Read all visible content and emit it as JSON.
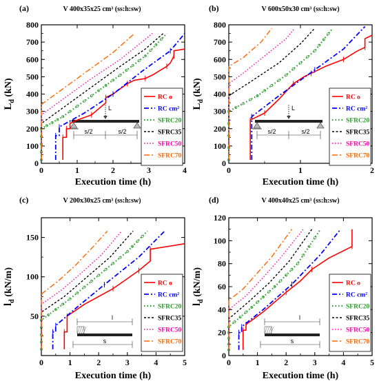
{
  "colors": {
    "RC o": "#ff0000",
    "RC cm²": "#0000ff",
    "SFRC20": "#2a9d2a",
    "SFRC35": "#000000",
    "SFRC50": "#ff00aa",
    "SFRC70": "#ff6600"
  },
  "chart_data": [
    {
      "id": "a",
      "type": "line",
      "panel_label": "(a)",
      "title": "V 400x35x25 cm³ (ss:h:sw)",
      "xlabel": "Execution time (h)",
      "ylabel_main": "L",
      "ylabel_sub": "d",
      "ylabel_unit": " (kN)",
      "xlim": [
        0,
        4
      ],
      "ylim": [
        0,
        800
      ],
      "xticks": [
        0,
        1,
        2,
        3,
        4
      ],
      "yticks": [
        0,
        100,
        200,
        300,
        400,
        500,
        600,
        700,
        800
      ],
      "inset": {
        "type": "beam",
        "labels": [
          "L",
          "s/2",
          "s/2"
        ]
      },
      "series": [
        {
          "name": "RC o",
          "points": [
            [
              0.6,
              20
            ],
            [
              0.6,
              150
            ],
            [
              0.7,
              150
            ],
            [
              0.7,
              200
            ],
            [
              0.8,
              200
            ],
            [
              0.8,
              230
            ],
            [
              1.0,
              250
            ],
            [
              1.4,
              280
            ],
            [
              1.8,
              350
            ],
            [
              1.8,
              380
            ],
            [
              2.0,
              400
            ],
            [
              2.4,
              460
            ],
            [
              2.6,
              480
            ],
            [
              2.9,
              490
            ],
            [
              3.1,
              510
            ],
            [
              3.5,
              560
            ],
            [
              3.6,
              580
            ],
            [
              3.7,
              620
            ],
            [
              3.7,
              650
            ],
            [
              4.0,
              660
            ]
          ]
        },
        {
          "name": "RC cm²",
          "points": [
            [
              0.4,
              20
            ],
            [
              0.4,
              160
            ],
            [
              0.5,
              160
            ],
            [
              0.5,
              210
            ],
            [
              1.2,
              290
            ],
            [
              2.0,
              400
            ],
            [
              2.8,
              530
            ],
            [
              3.6,
              650
            ],
            [
              4.0,
              750
            ]
          ]
        },
        {
          "name": "SFRC20",
          "points": [
            [
              0,
              20
            ],
            [
              0,
              200
            ],
            [
              0.6,
              270
            ],
            [
              1.4,
              390
            ],
            [
              2.2,
              510
            ],
            [
              2.9,
              620
            ],
            [
              3.5,
              750
            ]
          ]
        },
        {
          "name": "SFRC35",
          "points": [
            [
              0,
              20
            ],
            [
              0,
              230
            ],
            [
              0.6,
              320
            ],
            [
              1.4,
              440
            ],
            [
              2.2,
              560
            ],
            [
              2.9,
              660
            ],
            [
              3.4,
              750
            ]
          ]
        },
        {
          "name": "SFRC50",
          "points": [
            [
              0,
              20
            ],
            [
              0,
              280
            ],
            [
              0.6,
              370
            ],
            [
              1.4,
              490
            ],
            [
              2.2,
              600
            ],
            [
              3.1,
              750
            ]
          ]
        },
        {
          "name": "SFRC70",
          "points": [
            [
              0,
              20
            ],
            [
              0,
              340
            ],
            [
              0.6,
              430
            ],
            [
              1.4,
              550
            ],
            [
              2.0,
              640
            ],
            [
              2.6,
              750
            ]
          ]
        }
      ]
    },
    {
      "id": "b",
      "type": "line",
      "panel_label": "(b)",
      "title": "V 600x50x30 cm³ (ss:h:sw)",
      "xlabel": "Execution time (h)",
      "ylabel_main": "L",
      "ylabel_sub": "d",
      "ylabel_unit": " (kN)",
      "xlim": [
        0,
        2
      ],
      "ylim": [
        0,
        800
      ],
      "xticks": [
        0,
        1,
        2
      ],
      "yticks": [
        0,
        100,
        200,
        300,
        400,
        500,
        600,
        700,
        800
      ],
      "inset": {
        "type": "beam",
        "labels": [
          "L",
          "s/2",
          "s/2"
        ]
      },
      "series": [
        {
          "name": "RC o",
          "points": [
            [
              0.3,
              20
            ],
            [
              0.3,
              250
            ],
            [
              0.35,
              260
            ],
            [
              0.5,
              290
            ],
            [
              0.7,
              370
            ],
            [
              0.9,
              460
            ],
            [
              1.05,
              500
            ],
            [
              1.15,
              520
            ],
            [
              1.35,
              560
            ],
            [
              1.6,
              600
            ],
            [
              1.8,
              650
            ],
            [
              1.9,
              670
            ],
            [
              1.9,
              720
            ],
            [
              2.0,
              740
            ]
          ]
        },
        {
          "name": "RC cm²",
          "points": [
            [
              0.32,
              20
            ],
            [
              0.32,
              270
            ],
            [
              0.7,
              390
            ],
            [
              1.2,
              540
            ],
            [
              1.6,
              660
            ],
            [
              1.9,
              790
            ]
          ]
        },
        {
          "name": "SFRC20",
          "points": [
            [
              0,
              20
            ],
            [
              0,
              300
            ],
            [
              0.4,
              390
            ],
            [
              0.8,
              510
            ],
            [
              1.2,
              650
            ],
            [
              1.45,
              780
            ]
          ]
        },
        {
          "name": "SFRC35",
          "points": [
            [
              0,
              20
            ],
            [
              0,
              390
            ],
            [
              0.3,
              470
            ],
            [
              0.7,
              580
            ],
            [
              1.0,
              690
            ],
            [
              1.2,
              780
            ]
          ]
        },
        {
          "name": "SFRC50",
          "points": [
            [
              0,
              20
            ],
            [
              0,
              460
            ],
            [
              0.2,
              520
            ],
            [
              0.5,
              620
            ],
            [
              0.8,
              720
            ],
            [
              0.92,
              780
            ]
          ]
        },
        {
          "name": "SFRC70",
          "points": [
            [
              0,
              20
            ],
            [
              0,
              560
            ],
            [
              0.2,
              610
            ],
            [
              0.45,
              700
            ],
            [
              0.6,
              780
            ]
          ]
        }
      ]
    },
    {
      "id": "c",
      "type": "line",
      "panel_label": "(c)",
      "title": "V 200x30x25 cm³ (ss:h:sw)",
      "xlabel": "Execution time (h)",
      "ylabel_main": "l",
      "ylabel_sub": "d",
      "ylabel_unit": " (kN/m)",
      "xlim": [
        0,
        5
      ],
      "ylim": [
        0,
        175
      ],
      "xticks": [
        0,
        1,
        2,
        3,
        4,
        5
      ],
      "yticks": [
        50,
        100,
        150
      ],
      "inset": {
        "type": "slab",
        "labels": [
          "l",
          "s"
        ]
      },
      "series": [
        {
          "name": "RC o",
          "points": [
            [
              0.8,
              8
            ],
            [
              0.8,
              30
            ],
            [
              0.9,
              30
            ],
            [
              0.9,
              50
            ],
            [
              1.5,
              65
            ],
            [
              2.5,
              85
            ],
            [
              2.9,
              95
            ],
            [
              3.4,
              108
            ],
            [
              3.8,
              120
            ],
            [
              3.8,
              135
            ],
            [
              5.0,
              142
            ]
          ]
        },
        {
          "name": "RC cm²",
          "points": [
            [
              0.4,
              8
            ],
            [
              0.4,
              30
            ],
            [
              0.5,
              30
            ],
            [
              0.5,
              38
            ],
            [
              1.2,
              60
            ],
            [
              2.2,
              90
            ],
            [
              3.4,
              125
            ],
            [
              4.3,
              158
            ]
          ]
        },
        {
          "name": "SFRC20",
          "points": [
            [
              0,
              8
            ],
            [
              0,
              45
            ],
            [
              1.0,
              72
            ],
            [
              2.0,
              102
            ],
            [
              3.0,
              132
            ],
            [
              3.7,
              158
            ]
          ]
        },
        {
          "name": "SFRC35",
          "points": [
            [
              0,
              8
            ],
            [
              0,
              55
            ],
            [
              0.8,
              75
            ],
            [
              1.6,
              100
            ],
            [
              2.4,
              125
            ],
            [
              3.2,
              158
            ]
          ]
        },
        {
          "name": "SFRC50",
          "points": [
            [
              0,
              8
            ],
            [
              0,
              65
            ],
            [
              0.7,
              83
            ],
            [
              1.4,
              105
            ],
            [
              2.1,
              128
            ],
            [
              2.8,
              158
            ]
          ]
        },
        {
          "name": "SFRC70",
          "points": [
            [
              0,
              8
            ],
            [
              0,
              78
            ],
            [
              0.6,
              95
            ],
            [
              1.2,
              115
            ],
            [
              1.8,
              138
            ],
            [
              2.3,
              158
            ]
          ]
        }
      ]
    },
    {
      "id": "d",
      "type": "line",
      "panel_label": "(d)",
      "title": "V 400x40x25 cm³ (ss:h:sw)",
      "xlabel": "Execution time (h)",
      "ylabel_main": "l",
      "ylabel_sub": "d",
      "ylabel_unit": " (kN/m)",
      "xlim": [
        0,
        5
      ],
      "ylim": [
        0,
        120
      ],
      "xticks": [
        0,
        1,
        2,
        3,
        4,
        5
      ],
      "yticks": [
        0,
        20,
        40,
        60,
        80,
        100,
        120
      ],
      "inset": {
        "type": "slab",
        "labels": [
          "l",
          "s"
        ]
      },
      "series": [
        {
          "name": "RC o",
          "points": [
            [
              0.5,
              5
            ],
            [
              0.5,
              22
            ],
            [
              0.6,
              22
            ],
            [
              0.6,
              27
            ],
            [
              1.2,
              38
            ],
            [
              2.0,
              55
            ],
            [
              2.5,
              65
            ],
            [
              2.9,
              75
            ],
            [
              3.5,
              85
            ],
            [
              4.3,
              95
            ],
            [
              4.3,
              110
            ]
          ]
        },
        {
          "name": "RC cm²",
          "points": [
            [
              0.35,
              5
            ],
            [
              0.35,
              20
            ],
            [
              0.45,
              20
            ],
            [
              0.45,
              25
            ],
            [
              1.2,
              40
            ],
            [
              2.2,
              62
            ],
            [
              3.2,
              88
            ],
            [
              3.9,
              110
            ]
          ]
        },
        {
          "name": "SFRC20",
          "points": [
            [
              0,
              5
            ],
            [
              0,
              25
            ],
            [
              0.8,
              42
            ],
            [
              1.6,
              60
            ],
            [
              2.4,
              80
            ],
            [
              3.2,
              110
            ]
          ]
        },
        {
          "name": "SFRC35",
          "points": [
            [
              0,
              5
            ],
            [
              0,
              32
            ],
            [
              0.7,
              47
            ],
            [
              1.4,
              63
            ],
            [
              2.1,
              82
            ],
            [
              2.9,
              110
            ]
          ]
        },
        {
          "name": "SFRC50",
          "points": [
            [
              0,
              5
            ],
            [
              0,
              40
            ],
            [
              0.6,
              52
            ],
            [
              1.2,
              68
            ],
            [
              1.8,
              85
            ],
            [
              2.6,
              110
            ]
          ]
        },
        {
          "name": "SFRC70",
          "points": [
            [
              0,
              5
            ],
            [
              0,
              48
            ],
            [
              0.5,
              58
            ],
            [
              1.0,
              72
            ],
            [
              1.5,
              86
            ],
            [
              2.2,
              110
            ]
          ]
        }
      ]
    }
  ]
}
